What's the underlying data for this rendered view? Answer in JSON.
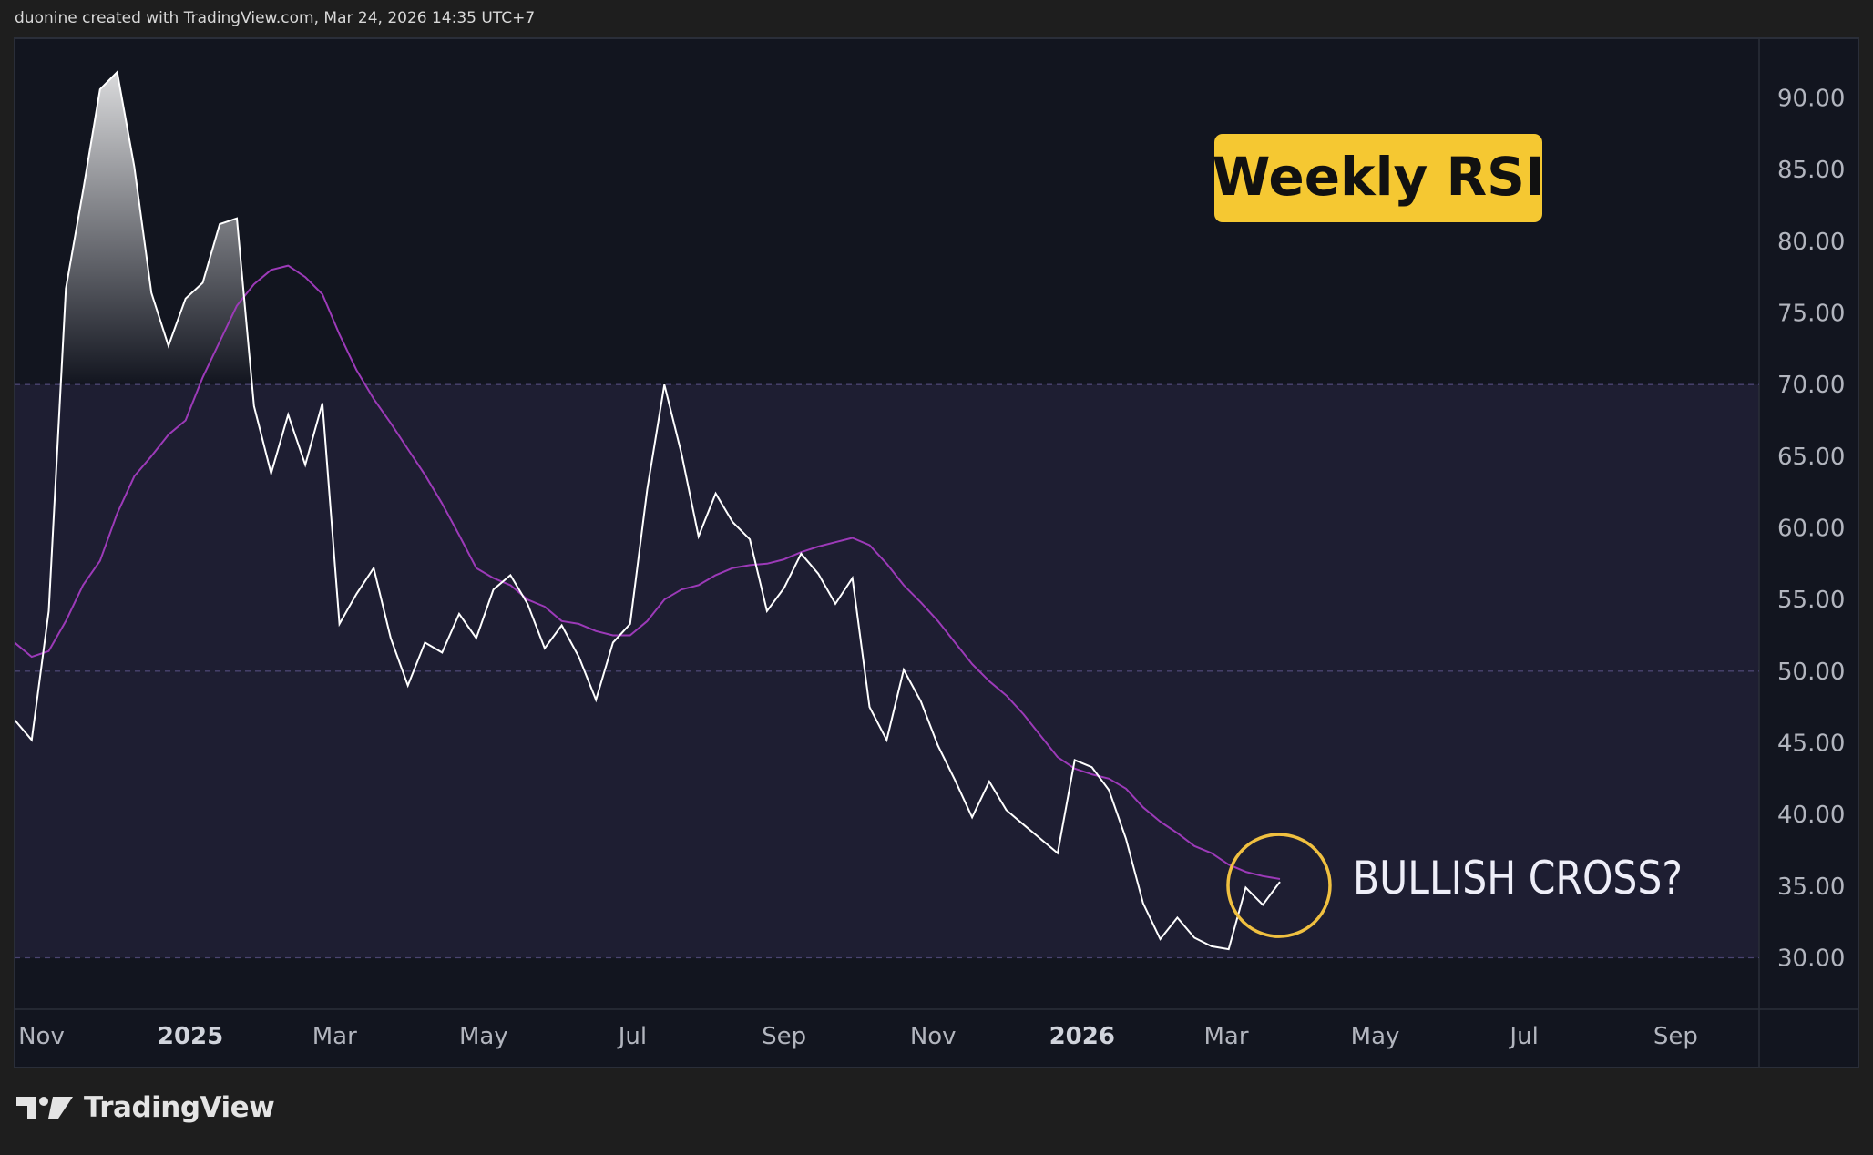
{
  "header": {
    "caption": "duonine created with TradingView.com, Mar 24, 2026 14:35 UTC+7"
  },
  "footer": {
    "brand": "TradingView",
    "logo_icon": "tradingview-logo-icon"
  },
  "colors": {
    "rsi": "#ffffff",
    "ma": "#9c3ab8",
    "band": "#1e1e32",
    "background": "#12151f",
    "label_box": "#f5c832",
    "circle": "#f0c040",
    "page": "#1e1e1e"
  },
  "chart_data": {
    "type": "line",
    "title": "",
    "grid": false,
    "ylim": [
      25,
      95
    ],
    "xlim": [
      "2024-10-21",
      "2026-10-05"
    ],
    "y_ticks": [
      "90.00",
      "85.00",
      "80.00",
      "75.00",
      "70.00",
      "65.00",
      "60.00",
      "55.00",
      "50.00",
      "45.00",
      "40.00",
      "35.00",
      "30.00"
    ],
    "x_ticks": [
      {
        "label": "Nov",
        "date": "2024-11-01",
        "bold": false
      },
      {
        "label": "2025",
        "date": "2025-01-01",
        "bold": true
      },
      {
        "label": "Mar",
        "date": "2025-03-01",
        "bold": false
      },
      {
        "label": "May",
        "date": "2025-05-01",
        "bold": false
      },
      {
        "label": "Jul",
        "date": "2025-07-01",
        "bold": false
      },
      {
        "label": "Sep",
        "date": "2025-09-01",
        "bold": false
      },
      {
        "label": "Nov",
        "date": "2025-11-01",
        "bold": false
      },
      {
        "label": "2026",
        "date": "2026-01-01",
        "bold": true
      },
      {
        "label": "Mar",
        "date": "2026-03-01",
        "bold": false
      },
      {
        "label": "May",
        "date": "2026-05-01",
        "bold": false
      },
      {
        "label": "Jul",
        "date": "2026-07-01",
        "bold": false
      },
      {
        "label": "Sep",
        "date": "2026-09-01",
        "bold": false
      }
    ],
    "levels": {
      "upper": 70,
      "middle": 50,
      "lower": 30
    },
    "x": [
      "2024-10-21",
      "2024-10-28",
      "2024-11-04",
      "2024-11-11",
      "2024-11-18",
      "2024-11-25",
      "2024-12-02",
      "2024-12-09",
      "2024-12-16",
      "2024-12-23",
      "2024-12-30",
      "2025-01-06",
      "2025-01-13",
      "2025-01-20",
      "2025-01-27",
      "2025-02-03",
      "2025-02-10",
      "2025-02-17",
      "2025-02-24",
      "2025-03-03",
      "2025-03-10",
      "2025-03-17",
      "2025-03-24",
      "2025-03-31",
      "2025-04-07",
      "2025-04-14",
      "2025-04-21",
      "2025-04-28",
      "2025-05-05",
      "2025-05-12",
      "2025-05-19",
      "2025-05-26",
      "2025-06-02",
      "2025-06-09",
      "2025-06-16",
      "2025-06-23",
      "2025-06-30",
      "2025-07-07",
      "2025-07-14",
      "2025-07-21",
      "2025-07-28",
      "2025-08-04",
      "2025-08-11",
      "2025-08-18",
      "2025-08-25",
      "2025-09-01",
      "2025-09-08",
      "2025-09-15",
      "2025-09-22",
      "2025-09-29",
      "2025-10-06",
      "2025-10-13",
      "2025-10-20",
      "2025-10-27",
      "2025-11-03",
      "2025-11-10",
      "2025-11-17",
      "2025-11-24",
      "2025-12-01",
      "2025-12-08",
      "2025-12-15",
      "2025-12-22",
      "2025-12-29",
      "2026-01-05",
      "2026-01-12",
      "2026-01-19",
      "2026-01-26",
      "2026-02-02",
      "2026-02-09",
      "2026-02-16",
      "2026-02-23",
      "2026-03-02",
      "2026-03-09",
      "2026-03-16",
      "2026-03-23"
    ],
    "series": [
      {
        "key": "rsi",
        "values": [
          46.6,
          45.2,
          54.2,
          76.7,
          83.5,
          90.6,
          91.8,
          85.2,
          76.4,
          72.7,
          76.0,
          77.1,
          81.2,
          81.6,
          68.5,
          63.8,
          67.9,
          64.4,
          68.7,
          53.3,
          55.4,
          57.2,
          52.3,
          49.0,
          52.0,
          51.3,
          54.0,
          52.3,
          55.7,
          56.7,
          54.7,
          51.6,
          53.2,
          51.0,
          48.0,
          52.0,
          53.3,
          62.7,
          70.0,
          65.2,
          59.4,
          62.4,
          60.4,
          59.2,
          54.2,
          55.8,
          58.2,
          56.8,
          54.7,
          56.5,
          47.5,
          45.2,
          50.1,
          47.9,
          44.8,
          42.4,
          39.8,
          42.3,
          40.3,
          39.3,
          38.3,
          37.3,
          43.8,
          43.3,
          41.7,
          38.3,
          33.8,
          31.3,
          32.8,
          31.4,
          30.8,
          30.6,
          34.9,
          33.7,
          35.3
        ]
      },
      {
        "key": "ma",
        "values": [
          52.0,
          51.0,
          51.4,
          53.5,
          56.0,
          57.7,
          61.0,
          63.6,
          65.0,
          66.5,
          67.5,
          70.5,
          73.0,
          75.5,
          77.0,
          78.0,
          78.3,
          77.5,
          76.3,
          73.5,
          71.0,
          69.0,
          67.3,
          65.5,
          63.7,
          61.7,
          59.5,
          57.2,
          56.5,
          56.0,
          55.0,
          54.5,
          53.5,
          53.3,
          52.8,
          52.5,
          52.5,
          53.5,
          55.0,
          55.7,
          56.0,
          56.7,
          57.2,
          57.4,
          57.5,
          57.8,
          58.3,
          58.7,
          59.0,
          59.3,
          58.8,
          57.5,
          56.0,
          54.8,
          53.5,
          52.0,
          50.5,
          49.3,
          48.3,
          47.0,
          45.5,
          44.0,
          43.2,
          42.8,
          42.5,
          41.8,
          40.5,
          39.5,
          38.7,
          37.8,
          37.3,
          36.5,
          36.0,
          35.7,
          35.5
        ]
      }
    ],
    "annotations": [
      {
        "key": "title_box",
        "text": "Weekly RSI"
      },
      {
        "key": "callout",
        "text": "BULLISH CROSS?",
        "circle_at": {
          "date": "2026-03-23",
          "value": 35.3
        }
      }
    ]
  }
}
